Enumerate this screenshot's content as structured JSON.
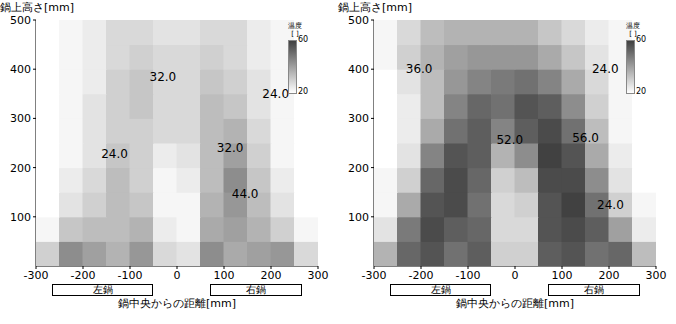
{
  "chart_data": [
    {
      "type": "heatmap",
      "x_label": "鍋中央からの距離[mm]",
      "y_label": "鍋上高さ[mm]",
      "xlim": [
        -300,
        300
      ],
      "ylim": [
        0,
        500
      ],
      "xticks": [
        -300,
        -200,
        -100,
        0,
        100,
        200,
        300
      ],
      "yticks": [
        100,
        200,
        300,
        400,
        500
      ],
      "x": [
        -275,
        -225,
        -175,
        -125,
        -75,
        -25,
        25,
        75,
        125,
        175,
        225,
        275
      ],
      "y": [
        25,
        75,
        125,
        175,
        225,
        275,
        325,
        375,
        425,
        475
      ],
      "cells": [
        [
          30,
          44,
          40,
          36,
          42,
          28,
          26,
          44,
          38,
          40,
          42,
          28
        ],
        [
          22,
          32,
          34,
          34,
          36,
          24,
          22,
          38,
          40,
          36,
          30,
          22
        ],
        [
          20,
          26,
          30,
          34,
          32,
          22,
          22,
          36,
          42,
          34,
          26,
          20
        ],
        [
          20,
          24,
          28,
          34,
          30,
          22,
          24,
          34,
          44,
          32,
          24,
          20
        ],
        [
          20,
          22,
          26,
          32,
          30,
          24,
          26,
          34,
          40,
          30,
          22,
          20
        ],
        [
          20,
          22,
          26,
          30,
          30,
          28,
          28,
          34,
          36,
          28,
          22,
          20
        ],
        [
          20,
          22,
          26,
          30,
          32,
          28,
          28,
          34,
          32,
          26,
          22,
          20
        ],
        [
          20,
          22,
          24,
          30,
          32,
          28,
          28,
          32,
          30,
          26,
          22,
          20
        ],
        [
          20,
          22,
          24,
          28,
          30,
          28,
          28,
          30,
          28,
          24,
          22,
          20
        ],
        [
          20,
          22,
          24,
          28,
          28,
          26,
          26,
          28,
          28,
          24,
          22,
          20
        ]
      ],
      "colorbar": {
        "title": "温度",
        "unit": "[ ]",
        "range": [
          20,
          60
        ],
        "ticks": [
          20,
          60
        ]
      },
      "annotations": [
        {
          "x": -30,
          "y": 385,
          "text": "32.0"
        },
        {
          "x": 210,
          "y": 350,
          "text": "24.0"
        },
        {
          "x": -133,
          "y": 228,
          "text": "24.0"
        },
        {
          "x": 113,
          "y": 240,
          "text": "32.0"
        },
        {
          "x": 145,
          "y": 146,
          "text": "44.0"
        }
      ],
      "pots": [
        {
          "label": "左鍋",
          "x0": -265,
          "x1": -50
        },
        {
          "label": "右鍋",
          "x0": 70,
          "x1": 265
        }
      ]
    },
    {
      "type": "heatmap",
      "x_label": "鍋中央からの距離[mm]",
      "y_label": "鍋上高さ[mm]",
      "xlim": [
        -300,
        300
      ],
      "ylim": [
        0,
        500
      ],
      "xticks": [
        -300,
        -200,
        -100,
        0,
        100,
        200,
        300
      ],
      "yticks": [
        100,
        200,
        300,
        400,
        500
      ],
      "x": [
        -275,
        -225,
        -175,
        -125,
        -75,
        -25,
        25,
        75,
        125,
        175,
        225,
        275
      ],
      "y": [
        25,
        75,
        125,
        175,
        225,
        275,
        325,
        375,
        425,
        475
      ],
      "cells": [
        [
          36,
          52,
          56,
          50,
          54,
          30,
          30,
          54,
          56,
          50,
          52,
          34
        ],
        [
          26,
          48,
          58,
          54,
          52,
          28,
          28,
          56,
          58,
          54,
          40,
          24
        ],
        [
          22,
          38,
          56,
          58,
          50,
          28,
          30,
          56,
          60,
          50,
          30,
          22
        ],
        [
          22,
          30,
          52,
          58,
          52,
          30,
          34,
          58,
          58,
          44,
          26,
          20
        ],
        [
          20,
          26,
          46,
          56,
          54,
          36,
          44,
          60,
          56,
          38,
          24,
          20
        ],
        [
          20,
          24,
          38,
          50,
          54,
          46,
          54,
          58,
          50,
          34,
          22,
          20
        ],
        [
          20,
          24,
          34,
          46,
          52,
          50,
          56,
          54,
          44,
          30,
          22,
          20
        ],
        [
          20,
          26,
          34,
          42,
          46,
          48,
          50,
          46,
          38,
          28,
          22,
          20
        ],
        [
          22,
          30,
          36,
          40,
          42,
          42,
          42,
          38,
          32,
          26,
          22,
          20
        ],
        [
          22,
          28,
          34,
          36,
          36,
          36,
          36,
          32,
          28,
          24,
          22,
          20
        ]
      ],
      "colorbar": {
        "title": "温度",
        "unit": "[ ]",
        "range": [
          20,
          60
        ],
        "ticks": [
          20,
          60
        ]
      },
      "annotations": [
        {
          "x": -204,
          "y": 400,
          "text": "36.0"
        },
        {
          "x": 192,
          "y": 400,
          "text": "24.0"
        },
        {
          "x": -11,
          "y": 257,
          "text": "52.0"
        },
        {
          "x": 150,
          "y": 260,
          "text": "56.0"
        },
        {
          "x": 203,
          "y": 125,
          "text": "24.0"
        }
      ],
      "pots": [
        {
          "label": "左鍋",
          "x0": -265,
          "x1": -50
        },
        {
          "label": "右鍋",
          "x0": 70,
          "x1": 265
        }
      ]
    }
  ]
}
